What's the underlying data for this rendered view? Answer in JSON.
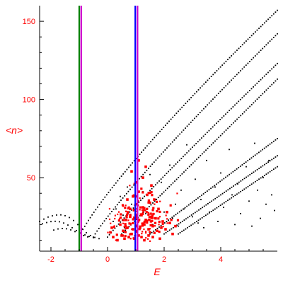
{
  "chart_data": {
    "type": "scatter",
    "title": "",
    "xlabel": "E",
    "ylabel": "<n>",
    "xlim": [
      -2.4,
      6.0
    ],
    "ylim": [
      3,
      160
    ],
    "xticks": [
      -2,
      0,
      2,
      4
    ],
    "yticks": [
      50,
      100,
      150
    ],
    "xtick_labels": [
      "-2",
      "0",
      "2",
      "4"
    ],
    "ytick_labels": [
      "50",
      "100",
      "150"
    ],
    "grid": false,
    "legend": "none",
    "vertical_lines": [
      {
        "x": -1.0,
        "color": "#008000"
      },
      {
        "x": -0.93,
        "color": "#cc00cc"
      },
      {
        "x": 0.98,
        "color": "#0000ff"
      },
      {
        "x": 1.06,
        "color": "#cc00cc"
      }
    ],
    "series": [
      {
        "color": "#000000",
        "marker": "dot",
        "bands": [
          {
            "x_start": -1.0,
            "x_end": 6.0,
            "y_start": 12,
            "y_end": 157,
            "gamma": 0.85
          },
          {
            "x_start": -0.5,
            "x_end": 6.0,
            "y_start": 12,
            "y_end": 142,
            "gamma": 0.9
          },
          {
            "x_start": 0.0,
            "x_end": 6.0,
            "y_start": 12,
            "y_end": 123,
            "gamma": 0.95
          },
          {
            "x_start": 0.5,
            "x_end": 6.0,
            "y_start": 14,
            "y_end": 113,
            "gamma": 1.0
          },
          {
            "x_start": 1.5,
            "x_end": 6.0,
            "y_start": 14,
            "y_end": 75,
            "gamma": 1.0
          },
          {
            "x_start": 2.0,
            "x_end": 6.0,
            "y_start": 14,
            "y_end": 64,
            "gamma": 1.0
          },
          {
            "x_start": 2.5,
            "x_end": 6.0,
            "y_start": 14,
            "y_end": 57,
            "gamma": 1.0
          }
        ],
        "left_tail": [
          [
            -2.4,
            22
          ],
          [
            -2.25,
            23.5
          ],
          [
            -2.1,
            24.8
          ],
          [
            -1.95,
            25.6
          ],
          [
            -1.8,
            26.1
          ],
          [
            -1.65,
            26.2
          ],
          [
            -1.5,
            25.7
          ],
          [
            -1.35,
            24.5
          ],
          [
            -1.2,
            22.6
          ],
          [
            -1.05,
            20.0
          ],
          [
            -0.9,
            17.2
          ],
          [
            -0.75,
            14.8
          ],
          [
            -0.6,
            13.0
          ],
          [
            -0.45,
            11.8
          ],
          [
            -0.3,
            11.0
          ],
          [
            -2.3,
            20.5
          ],
          [
            -2.15,
            21.3
          ],
          [
            -2.0,
            21.9
          ],
          [
            -1.85,
            22.1
          ],
          [
            -1.7,
            21.8
          ],
          [
            -1.55,
            21.0
          ],
          [
            -1.4,
            19.7
          ],
          [
            -1.25,
            18.0
          ],
          [
            -1.1,
            16.2
          ],
          [
            -0.95,
            14.6
          ],
          [
            -0.8,
            13.4
          ],
          [
            -0.65,
            12.4
          ],
          [
            -0.5,
            11.6
          ],
          [
            -1.9,
            16.5
          ],
          [
            -1.75,
            17.2
          ],
          [
            -1.6,
            17.5
          ],
          [
            -1.45,
            17.3
          ],
          [
            -1.3,
            16.6
          ],
          [
            -1.15,
            15.5
          ],
          [
            -1.0,
            14.2
          ],
          [
            -0.85,
            13.0
          ],
          [
            -0.7,
            12.1
          ]
        ],
        "scattered": [
          [
            0.3,
            30
          ],
          [
            0.45,
            38
          ],
          [
            0.55,
            26
          ],
          [
            0.7,
            44
          ],
          [
            0.85,
            33
          ],
          [
            1.25,
            41
          ],
          [
            1.5,
            52
          ],
          [
            1.7,
            36
          ],
          [
            1.9,
            47
          ],
          [
            2.2,
            58
          ],
          [
            2.4,
            33
          ],
          [
            2.6,
            42
          ],
          [
            2.8,
            71
          ],
          [
            3.0,
            25
          ],
          [
            3.1,
            49
          ],
          [
            3.3,
            36
          ],
          [
            3.5,
            61
          ],
          [
            3.6,
            28
          ],
          [
            3.8,
            44
          ],
          [
            4.0,
            53
          ],
          [
            4.1,
            31
          ],
          [
            4.3,
            68
          ],
          [
            4.4,
            39
          ],
          [
            4.6,
            46
          ],
          [
            4.7,
            27
          ],
          [
            4.9,
            57
          ],
          [
            5.0,
            35
          ],
          [
            5.2,
            72
          ],
          [
            5.3,
            42
          ],
          [
            5.4,
            24
          ],
          [
            5.5,
            50
          ],
          [
            5.6,
            33
          ],
          [
            5.7,
            61
          ],
          [
            5.8,
            39
          ],
          [
            5.9,
            29
          ],
          [
            2.0,
            28
          ],
          [
            2.3,
            24
          ],
          [
            2.7,
            30
          ],
          [
            3.2,
            21
          ],
          [
            3.9,
            22
          ],
          [
            4.5,
            20
          ],
          [
            5.1,
            19
          ],
          [
            0.2,
            22
          ],
          [
            0.6,
            18
          ],
          [
            1.35,
            27
          ],
          [
            1.6,
            20
          ],
          [
            2.5,
            19
          ],
          [
            3.4,
            18
          ]
        ]
      },
      {
        "color": "#ff0000",
        "marker": "square",
        "cluster": {
          "center_x": 1.1,
          "center_y": 20,
          "sd_x": 0.5,
          "sd_y": 10,
          "y_min": 9,
          "y_max": 62
        },
        "points": [
          [
            0.2,
            12
          ],
          [
            0.35,
            10
          ],
          [
            0.5,
            13
          ],
          [
            0.6,
            11
          ],
          [
            0.75,
            12
          ],
          [
            0.85,
            14
          ],
          [
            0.95,
            11
          ],
          [
            1.1,
            13
          ],
          [
            1.2,
            12
          ],
          [
            1.3,
            10
          ],
          [
            1.45,
            13
          ],
          [
            1.6,
            12
          ],
          [
            0.55,
            16
          ],
          [
            0.7,
            18
          ],
          [
            0.9,
            17
          ],
          [
            1.0,
            19
          ],
          [
            1.15,
            18
          ],
          [
            1.3,
            20
          ],
          [
            1.45,
            17
          ],
          [
            1.6,
            19
          ],
          [
            1.75,
            16
          ],
          [
            1.9,
            18
          ],
          [
            2.05,
            17
          ],
          [
            0.65,
            23
          ],
          [
            0.8,
            25
          ],
          [
            1.05,
            24
          ],
          [
            1.2,
            26
          ],
          [
            1.35,
            23
          ],
          [
            1.55,
            25
          ],
          [
            1.7,
            24
          ],
          [
            1.95,
            22
          ],
          [
            2.2,
            21
          ],
          [
            0.8,
            30
          ],
          [
            1.0,
            33
          ],
          [
            1.25,
            31
          ],
          [
            1.5,
            34
          ],
          [
            1.8,
            30
          ],
          [
            2.1,
            28
          ],
          [
            0.9,
            38
          ],
          [
            1.1,
            41
          ],
          [
            1.4,
            39
          ],
          [
            1.65,
            36
          ],
          [
            0.7,
            36
          ],
          [
            1.0,
            47
          ],
          [
            1.25,
            50
          ],
          [
            1.55,
            45
          ],
          [
            0.85,
            54
          ],
          [
            1.35,
            57
          ],
          [
            1.1,
            61
          ],
          [
            0.1,
            15
          ],
          [
            0.15,
            18
          ],
          [
            2.3,
            14
          ],
          [
            2.4,
            19
          ],
          [
            1.85,
            11
          ],
          [
            0.45,
            20
          ]
        ]
      }
    ]
  }
}
